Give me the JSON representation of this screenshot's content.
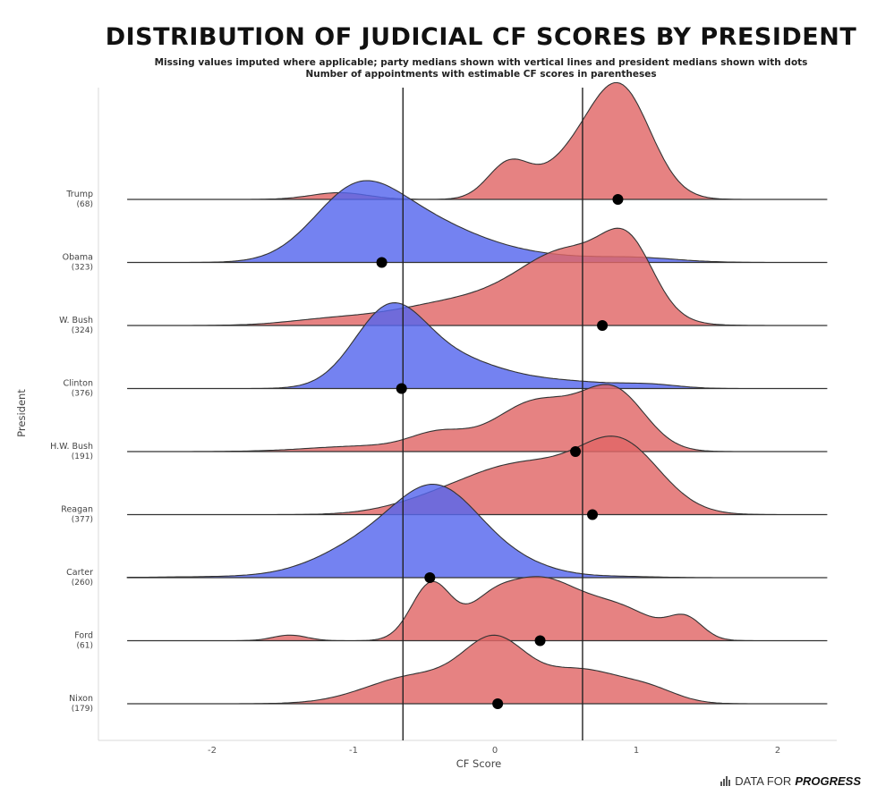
{
  "title": "DISTRIBUTION OF JUDICIAL CF SCORES BY PRESIDENT",
  "subtitle_1": "Missing values imputed where applicable; party medians shown with vertical lines and president medians shown with dots",
  "subtitle_2": "Number of appointments with estimable CF scores in parentheses",
  "brand": {
    "prefix": "DATA FOR",
    "suffix": "PROGRESS",
    "icon": "bar-chart-icon"
  },
  "chart_data": {
    "type": "ridgeline",
    "xlabel": "CF Score",
    "ylabel": "President",
    "xlim": [
      -2.6,
      2.35
    ],
    "x_ticks": [
      "-2",
      "-1",
      "0",
      "1",
      "2"
    ],
    "x_tick_values": [
      -2,
      -1,
      0,
      1,
      2
    ],
    "party_medians": [
      {
        "party": "Democratic",
        "value": -0.65
      },
      {
        "party": "Republican",
        "value": 0.62
      }
    ],
    "colors": {
      "Republican": "#e06666",
      "Democratic": "#5566ee"
    },
    "grid": false,
    "presidents": [
      {
        "label": "Trump",
        "count": "(68)",
        "party": "Republican",
        "median": 0.87,
        "peaks": [
          [
            -1.1,
            0.2,
            0.06
          ],
          [
            0.1,
            0.15,
            0.32
          ],
          [
            0.88,
            0.22,
            1.0
          ],
          [
            0.5,
            0.2,
            0.25
          ]
        ]
      },
      {
        "label": "Obama",
        "count": "(323)",
        "party": "Democratic",
        "median": -0.8,
        "peaks": [
          [
            -1.0,
            0.3,
            0.52
          ],
          [
            -0.55,
            0.4,
            0.35
          ],
          [
            0.2,
            0.4,
            0.06
          ],
          [
            1.0,
            0.3,
            0.04
          ]
        ]
      },
      {
        "label": "W. Bush",
        "count": "(324)",
        "party": "Republican",
        "median": 0.76,
        "peaks": [
          [
            -1.2,
            0.3,
            0.04
          ],
          [
            -0.2,
            0.5,
            0.22
          ],
          [
            0.55,
            0.35,
            0.6
          ],
          [
            0.95,
            0.18,
            0.5
          ]
        ]
      },
      {
        "label": "Clinton",
        "count": "(376)",
        "party": "Democratic",
        "median": -0.66,
        "peaks": [
          [
            -0.75,
            0.25,
            0.65
          ],
          [
            -0.3,
            0.35,
            0.25
          ],
          [
            0.5,
            0.35,
            0.06
          ],
          [
            1.1,
            0.2,
            0.03
          ]
        ]
      },
      {
        "label": "H.W. Bush",
        "count": "(191)",
        "party": "Republican",
        "median": 0.57,
        "peaks": [
          [
            -0.9,
            0.4,
            0.05
          ],
          [
            -0.4,
            0.2,
            0.14
          ],
          [
            0.3,
            0.3,
            0.45
          ],
          [
            0.85,
            0.22,
            0.5
          ]
        ]
      },
      {
        "label": "Reagan",
        "count": "(377)",
        "party": "Republican",
        "median": 0.69,
        "peaks": [
          [
            -0.5,
            0.3,
            0.05
          ],
          [
            0.2,
            0.45,
            0.45
          ],
          [
            0.9,
            0.28,
            0.55
          ]
        ]
      },
      {
        "label": "Carter",
        "count": "(260)",
        "party": "Democratic",
        "median": -0.46,
        "peaks": [
          [
            -1.8,
            0.5,
            0.01
          ],
          [
            -0.4,
            0.3,
            0.7
          ],
          [
            -0.9,
            0.35,
            0.28
          ],
          [
            0.1,
            0.3,
            0.12
          ],
          [
            0.9,
            0.25,
            0.01
          ]
        ]
      },
      {
        "label": "Ford",
        "count": "(61)",
        "party": "Republican",
        "median": 0.32,
        "peaks": [
          [
            -1.45,
            0.12,
            0.05
          ],
          [
            -0.45,
            0.14,
            0.5
          ],
          [
            0.3,
            0.3,
            0.55
          ],
          [
            0.9,
            0.25,
            0.25
          ],
          [
            1.35,
            0.12,
            0.18
          ],
          [
            -0.05,
            0.15,
            0.15
          ]
        ]
      },
      {
        "label": "Nixon",
        "count": "(179)",
        "party": "Republican",
        "median": 0.02,
        "peaks": [
          [
            -0.55,
            0.35,
            0.25
          ],
          [
            0.0,
            0.22,
            0.5
          ],
          [
            0.6,
            0.3,
            0.3
          ],
          [
            1.1,
            0.2,
            0.1
          ]
        ]
      }
    ]
  }
}
